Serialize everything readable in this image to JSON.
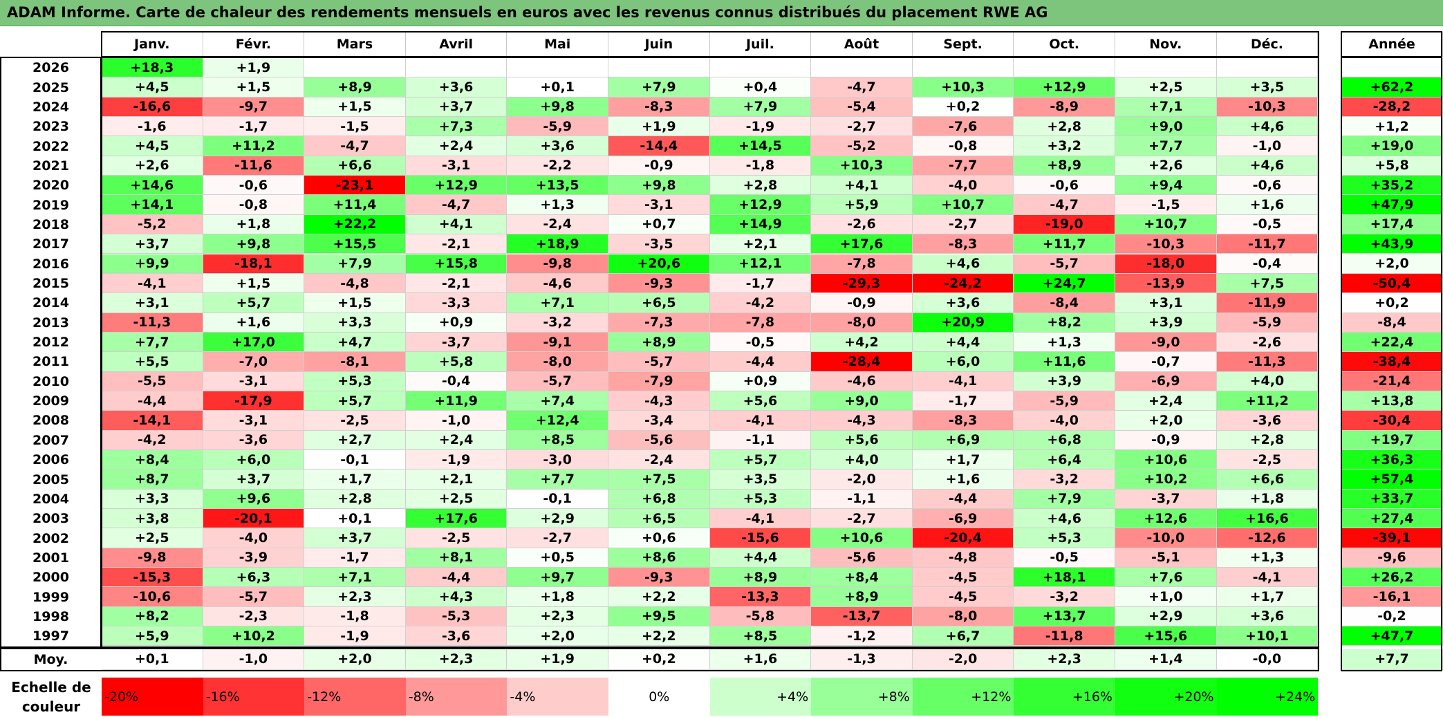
{
  "title": "ADAM Informe. Carte de chaleur des rendements mensuels en euros avec les revenus connus distribués du placement RWE AG",
  "months": [
    "Janv.",
    "Févr.",
    "Mars",
    "Avril",
    "Mai",
    "Juin",
    "Juil.",
    "Août",
    "Sept.",
    "Oct.",
    "Nov.",
    "Déc."
  ],
  "annual_header": "Année",
  "average_label": "Moy.",
  "legend_label_line1": "Echelle de",
  "legend_label_line2": "couleur",
  "colors": {
    "negative": "#ff0000",
    "neutral": "#ffffff",
    "positive": "#00ff00",
    "title_bg": "#7dc47d"
  },
  "chart_data": {
    "type": "heatmap",
    "title": "ADAM Informe. Carte de chaleur des rendements mensuels en euros avec les revenus connus distribués du placement RWE AG",
    "columns": [
      "Janv.",
      "Févr.",
      "Mars",
      "Avril",
      "Mai",
      "Juin",
      "Juil.",
      "Août",
      "Sept.",
      "Oct.",
      "Nov.",
      "Déc."
    ],
    "rows": [
      {
        "year": "2026",
        "values": [
          "+18,3",
          "+1,9",
          "",
          "",
          "",
          "",
          "",
          "",
          "",
          "",
          "",
          ""
        ],
        "annual": ""
      },
      {
        "year": "2025",
        "values": [
          "+4,5",
          "+1,5",
          "+8,9",
          "+3,6",
          "+0,1",
          "+7,9",
          "+0,4",
          "-4,7",
          "+10,3",
          "+12,9",
          "+2,5",
          "+3,5"
        ],
        "annual": "+62,2"
      },
      {
        "year": "2024",
        "values": [
          "-16,6",
          "-9,7",
          "+1,5",
          "+3,7",
          "+9,8",
          "-8,3",
          "+7,9",
          "-5,4",
          "+0,2",
          "-8,9",
          "+7,1",
          "-10,3"
        ],
        "annual": "-28,2"
      },
      {
        "year": "2023",
        "values": [
          "-1,6",
          "-1,7",
          "-1,5",
          "+7,3",
          "-5,9",
          "+1,9",
          "-1,9",
          "-2,7",
          "-7,6",
          "+2,8",
          "+9,0",
          "+4,6"
        ],
        "annual": "+1,2"
      },
      {
        "year": "2022",
        "values": [
          "+4,5",
          "+11,2",
          "-4,7",
          "+2,4",
          "+3,6",
          "-14,4",
          "+14,5",
          "-5,2",
          "-0,8",
          "+3,2",
          "+7,7",
          "-1,0"
        ],
        "annual": "+19,0"
      },
      {
        "year": "2021",
        "values": [
          "+2,6",
          "-11,6",
          "+6,6",
          "-3,1",
          "-2,2",
          "-0,9",
          "-1,8",
          "+10,3",
          "-7,7",
          "+8,9",
          "+2,6",
          "+4,6"
        ],
        "annual": "+5,8"
      },
      {
        "year": "2020",
        "values": [
          "+14,6",
          "-0,6",
          "-23,1",
          "+12,9",
          "+13,5",
          "+9,8",
          "+2,8",
          "+4,1",
          "-4,0",
          "-0,6",
          "+9,4",
          "-0,6"
        ],
        "annual": "+35,2"
      },
      {
        "year": "2019",
        "values": [
          "+14,1",
          "-0,8",
          "+11,4",
          "-4,7",
          "+1,3",
          "-3,1",
          "+12,9",
          "+5,9",
          "+10,7",
          "-4,7",
          "-1,5",
          "+1,6"
        ],
        "annual": "+47,9"
      },
      {
        "year": "2018",
        "values": [
          "-5,2",
          "+1,8",
          "+22,2",
          "+4,1",
          "-2,4",
          "+0,7",
          "+14,9",
          "-2,6",
          "-2,7",
          "-19,0",
          "+10,7",
          "-0,5"
        ],
        "annual": "+17,4"
      },
      {
        "year": "2017",
        "values": [
          "+3,7",
          "+9,8",
          "+15,5",
          "-2,1",
          "+18,9",
          "-3,5",
          "+2,1",
          "+17,6",
          "-8,3",
          "+11,7",
          "-10,3",
          "-11,7"
        ],
        "annual": "+43,9"
      },
      {
        "year": "2016",
        "values": [
          "+9,9",
          "-18,1",
          "+7,9",
          "+15,8",
          "-9,8",
          "+20,6",
          "+12,1",
          "-7,8",
          "+4,6",
          "-5,7",
          "-18,0",
          "-0,4"
        ],
        "annual": "+2,0"
      },
      {
        "year": "2015",
        "values": [
          "-4,1",
          "+1,5",
          "-4,8",
          "-2,1",
          "-4,6",
          "-9,3",
          "-1,7",
          "-29,3",
          "-24,2",
          "+24,7",
          "-13,9",
          "+7,5"
        ],
        "annual": "-50,4"
      },
      {
        "year": "2014",
        "values": [
          "+3,1",
          "+5,7",
          "+1,5",
          "-3,3",
          "+7,1",
          "+6,5",
          "-4,2",
          "-0,9",
          "+3,6",
          "-8,4",
          "+3,1",
          "-11,9"
        ],
        "annual": "+0,2"
      },
      {
        "year": "2013",
        "values": [
          "-11,3",
          "+1,6",
          "+3,3",
          "+0,9",
          "-3,2",
          "-7,3",
          "-7,8",
          "-8,0",
          "+20,9",
          "+8,2",
          "+3,9",
          "-5,9"
        ],
        "annual": "-8,4"
      },
      {
        "year": "2012",
        "values": [
          "+7,7",
          "+17,0",
          "+4,7",
          "-3,7",
          "-9,1",
          "+8,9",
          "-0,5",
          "+4,2",
          "+4,4",
          "+1,3",
          "-9,0",
          "-2,6"
        ],
        "annual": "+22,4"
      },
      {
        "year": "2011",
        "values": [
          "+5,5",
          "-7,0",
          "-8,1",
          "+5,8",
          "-8,0",
          "-5,7",
          "-4,4",
          "-28,4",
          "+6,0",
          "+11,6",
          "-0,7",
          "-11,3"
        ],
        "annual": "-38,4"
      },
      {
        "year": "2010",
        "values": [
          "-5,5",
          "-3,1",
          "+5,3",
          "-0,4",
          "-5,7",
          "-7,9",
          "+0,9",
          "-4,6",
          "-4,1",
          "+3,9",
          "-6,9",
          "+4,0"
        ],
        "annual": "-21,4"
      },
      {
        "year": "2009",
        "values": [
          "-4,4",
          "-17,9",
          "+5,7",
          "+11,9",
          "+7,4",
          "-4,3",
          "+5,6",
          "+9,0",
          "-1,7",
          "-5,9",
          "+2,4",
          "+11,2"
        ],
        "annual": "+13,8"
      },
      {
        "year": "2008",
        "values": [
          "-14,1",
          "-3,1",
          "-2,5",
          "-1,0",
          "+12,4",
          "-3,4",
          "-4,1",
          "-4,3",
          "-8,3",
          "-4,0",
          "+2,0",
          "-3,6"
        ],
        "annual": "-30,4"
      },
      {
        "year": "2007",
        "values": [
          "-4,2",
          "-3,6",
          "+2,7",
          "+2,4",
          "+8,5",
          "-5,6",
          "-1,1",
          "+5,6",
          "+6,9",
          "+6,8",
          "-0,9",
          "+2,8"
        ],
        "annual": "+19,7"
      },
      {
        "year": "2006",
        "values": [
          "+8,4",
          "+6,0",
          "-0,1",
          "-1,9",
          "-3,0",
          "-2,4",
          "+5,7",
          "+4,0",
          "+1,7",
          "+6,4",
          "+10,6",
          "-2,5"
        ],
        "annual": "+36,3"
      },
      {
        "year": "2005",
        "values": [
          "+8,7",
          "+3,7",
          "+1,7",
          "+2,1",
          "+7,7",
          "+7,5",
          "+3,5",
          "-2,0",
          "+1,6",
          "-3,2",
          "+10,2",
          "+6,6"
        ],
        "annual": "+57,4"
      },
      {
        "year": "2004",
        "values": [
          "+3,3",
          "+9,6",
          "+2,8",
          "+2,5",
          "-0,1",
          "+6,8",
          "+5,3",
          "-1,1",
          "-4,4",
          "+7,9",
          "-3,7",
          "+1,8"
        ],
        "annual": "+33,7"
      },
      {
        "year": "2003",
        "values": [
          "+3,8",
          "-20,1",
          "+0,1",
          "+17,6",
          "+2,9",
          "+6,5",
          "-4,1",
          "-2,7",
          "-6,9",
          "+4,6",
          "+12,6",
          "+16,6"
        ],
        "annual": "+27,4"
      },
      {
        "year": "2002",
        "values": [
          "+2,5",
          "-4,0",
          "+3,7",
          "-2,5",
          "-2,7",
          "+0,6",
          "-15,6",
          "+10,6",
          "-20,4",
          "+5,3",
          "-10,0",
          "-12,6"
        ],
        "annual": "-39,1"
      },
      {
        "year": "2001",
        "values": [
          "-9,8",
          "-3,9",
          "-1,7",
          "+8,1",
          "+0,5",
          "+8,6",
          "+4,4",
          "-5,6",
          "-4,8",
          "-0,5",
          "-5,1",
          "+1,3"
        ],
        "annual": "-9,6"
      },
      {
        "year": "2000",
        "values": [
          "-15,3",
          "+6,3",
          "+7,1",
          "-4,4",
          "+9,7",
          "-9,3",
          "+8,9",
          "+8,4",
          "-4,5",
          "+18,1",
          "+7,6",
          "-4,1"
        ],
        "annual": "+26,2"
      },
      {
        "year": "1999",
        "values": [
          "-10,6",
          "-5,7",
          "+2,3",
          "+4,3",
          "+1,8",
          "+2,2",
          "-13,3",
          "+8,9",
          "-4,5",
          "-3,2",
          "+1,0",
          "+1,7"
        ],
        "annual": "-16,1"
      },
      {
        "year": "1998",
        "values": [
          "+8,2",
          "-2,3",
          "-1,8",
          "-5,3",
          "+2,3",
          "+9,5",
          "-5,8",
          "-13,7",
          "-8,0",
          "+13,7",
          "+2,9",
          "+3,6"
        ],
        "annual": "-0,2"
      },
      {
        "year": "1997",
        "values": [
          "+5,9",
          "+10,2",
          "-1,9",
          "-3,6",
          "+2,0",
          "+2,2",
          "+8,5",
          "-1,2",
          "+6,7",
          "-11,8",
          "+15,6",
          "+10,1"
        ],
        "annual": "+47,7"
      }
    ],
    "averages": [
      "+0,1",
      "-1,0",
      "+2,0",
      "+2,3",
      "+1,9",
      "+0,2",
      "+1,6",
      "-1,3",
      "-2,0",
      "+2,3",
      "+1,4",
      "-0,0"
    ],
    "average_annual": "+7,7",
    "legend": [
      "-20%",
      "-16%",
      "-12%",
      "-8%",
      "-4%",
      "0%",
      "+4%",
      "+8%",
      "+12%",
      "+16%",
      "+20%",
      "+24%"
    ],
    "scale": {
      "min": -20,
      "max": 24,
      "unit": "%"
    }
  }
}
